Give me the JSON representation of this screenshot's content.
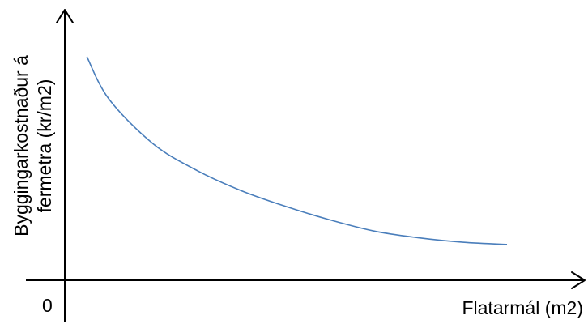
{
  "chart_data": {
    "type": "line",
    "xlabel": "Flatarmál (m2)",
    "ylabel_lines": [
      "Byggingarkostnaður á",
      "fermetra (kr/m2)"
    ],
    "origin_label": "0",
    "grid": false,
    "legend": "none",
    "ticks_shown": false,
    "series": [
      {
        "shape": "decreasing-convex",
        "color": "#4a7ebb",
        "x": [
          0.05,
          0.1,
          0.2,
          0.3,
          0.4,
          0.5,
          0.6,
          0.7,
          0.8,
          0.9,
          1.0
        ],
        "y": [
          1.0,
          0.81,
          0.61,
          0.49,
          0.4,
          0.33,
          0.27,
          0.22,
          0.19,
          0.17,
          0.16
        ]
      }
    ]
  }
}
